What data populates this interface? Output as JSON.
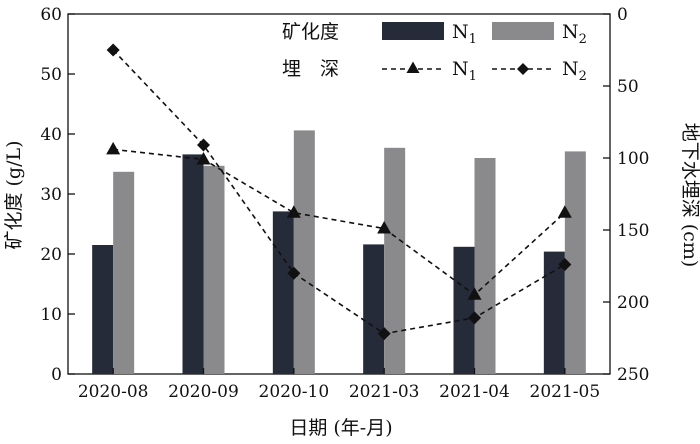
{
  "chart_data": {
    "type": "bar",
    "categories": [
      "2020-08",
      "2020-09",
      "2020-10",
      "2021-03",
      "2021-04",
      "2021-05"
    ],
    "xlabel": "日期 (年-月)",
    "ylabel_left": "矿化度 (g/L)",
    "ylabel_right": "地下水埋深 (cm)",
    "ylim_left": [
      0,
      60
    ],
    "yticks_left": [
      0,
      10,
      20,
      30,
      40,
      50,
      60
    ],
    "ylim_right": [
      0,
      250
    ],
    "yticks_right": [
      0,
      50,
      100,
      150,
      200,
      250
    ],
    "right_axis_inverted": true,
    "bar_series": [
      {
        "name": "N1",
        "values": [
          21.5,
          36.6,
          27.1,
          21.6,
          21.2,
          20.4
        ],
        "color": "#262b3a"
      },
      {
        "name": "N2",
        "values": [
          33.7,
          34.7,
          40.6,
          37.7,
          36.0,
          37.1
        ],
        "color": "#8a8a8c"
      }
    ],
    "line_series": [
      {
        "name": "N1",
        "marker": "triangle",
        "dash": "dashed",
        "values": [
          94,
          101,
          138,
          149,
          195,
          138
        ]
      },
      {
        "name": "N2",
        "marker": "diamond",
        "dash": "dashed",
        "values": [
          25,
          91,
          180,
          222,
          211,
          174
        ]
      }
    ],
    "legend": {
      "placement": "top-right",
      "row1_label": "矿化度",
      "row2_label": "埋　深",
      "entry1": "N",
      "entry1_sub": "1",
      "entry2": "N",
      "entry2_sub": "2"
    },
    "grid": false
  }
}
